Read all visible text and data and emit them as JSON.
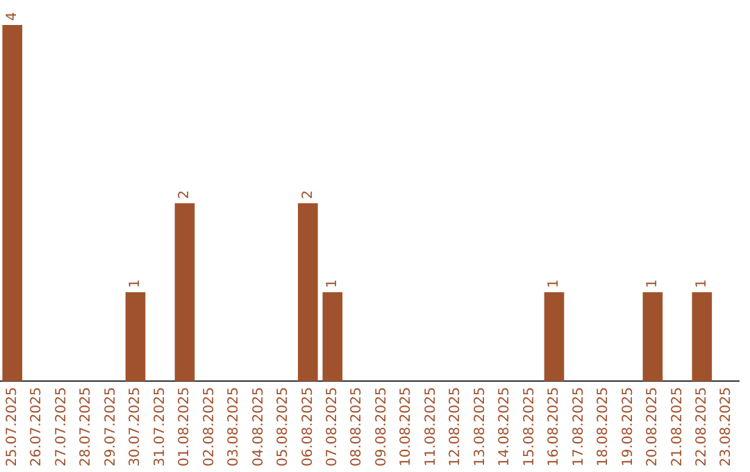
{
  "chart_data": {
    "type": "bar",
    "categories": [
      "25.07.2025",
      "26.07.2025",
      "27.07.2025",
      "28.07.2025",
      "29.07.2025",
      "30.07.2025",
      "31.07.2025",
      "01.08.2025",
      "02.08.2025",
      "03.08.2025",
      "04.08.2025",
      "05.08.2025",
      "06.08.2025",
      "07.08.2025",
      "08.08.2025",
      "09.08.2025",
      "10.08.2025",
      "11.08.2025",
      "12.08.2025",
      "13.08.2025",
      "14.08.2025",
      "15.08.2025",
      "16.08.2025",
      "17.08.2025",
      "18.08.2025",
      "19.08.2025",
      "20.08.2025",
      "21.08.2025",
      "22.08.2025",
      "23.08.2025"
    ],
    "values": [
      4,
      0,
      0,
      0,
      0,
      1,
      0,
      2,
      0,
      0,
      0,
      0,
      2,
      1,
      0,
      0,
      0,
      0,
      0,
      0,
      0,
      0,
      1,
      0,
      0,
      0,
      1,
      0,
      1,
      0
    ],
    "value_labels": [
      "4",
      null,
      null,
      null,
      null,
      "1",
      null,
      "2",
      null,
      null,
      null,
      null,
      "2",
      "1",
      null,
      null,
      null,
      null,
      null,
      null,
      null,
      null,
      "1",
      null,
      null,
      null,
      "1",
      null,
      "1",
      null
    ],
    "color": "#a0522d",
    "grid": false,
    "legend": false
  }
}
